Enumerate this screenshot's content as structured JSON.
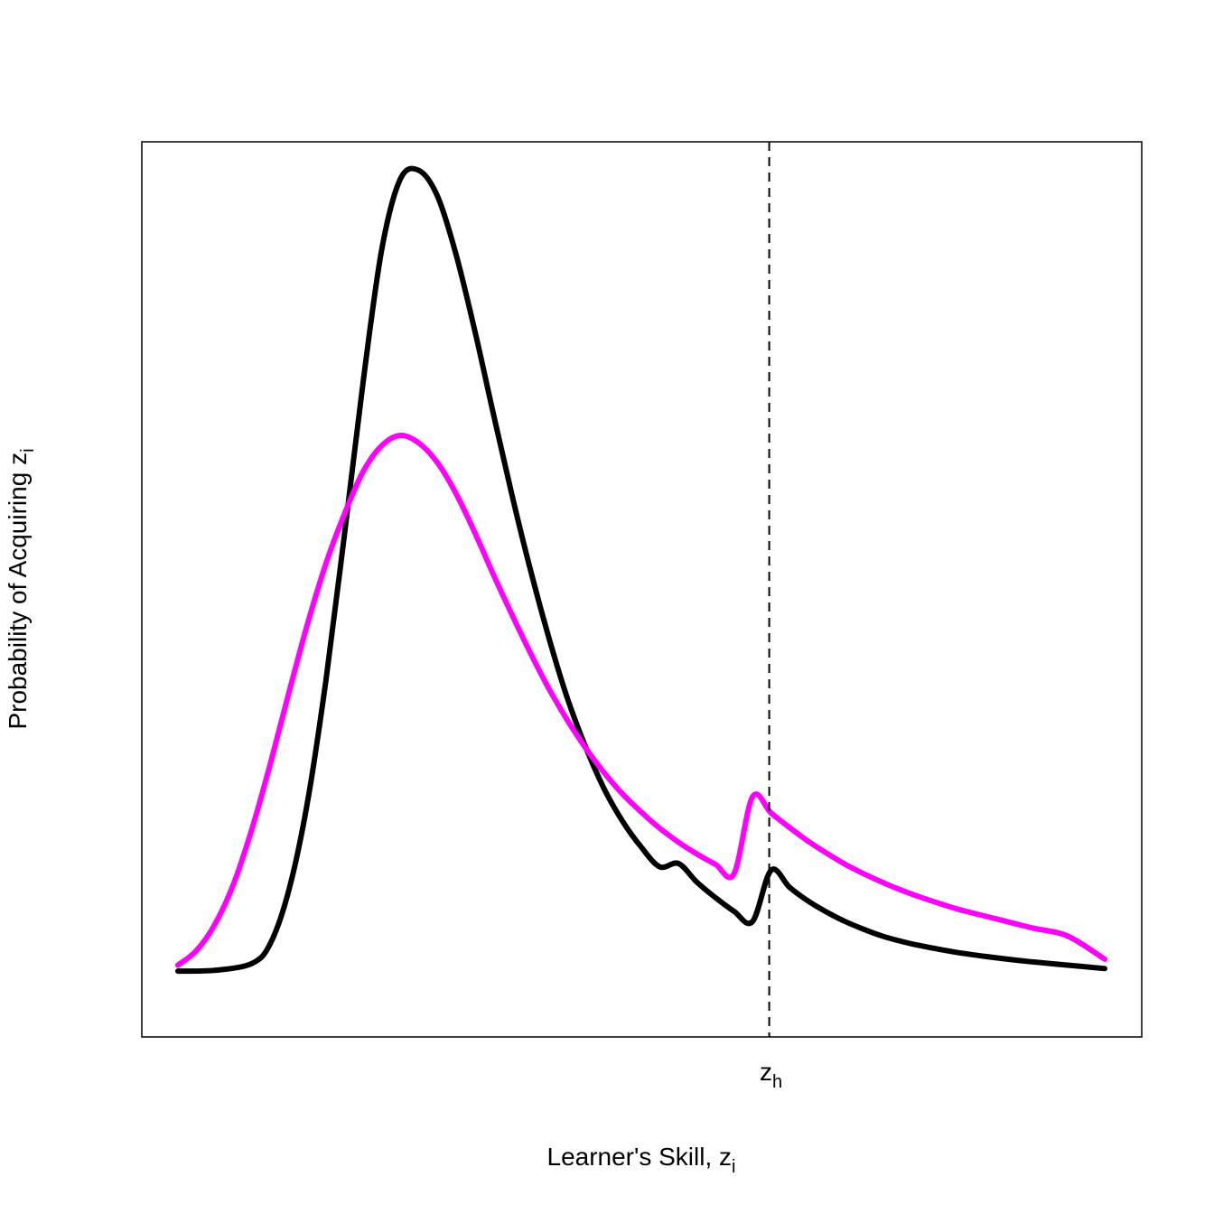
{
  "chart_data": {
    "type": "line",
    "title": "",
    "xlabel": "Learner's Skill, z",
    "xlabel_sub": "i",
    "ylabel": "Probability of Acquiring z",
    "ylabel_sub": "i",
    "xlim": [
      0,
      100
    ],
    "ylim": [
      0,
      100
    ],
    "grid": false,
    "legend": "none",
    "reference_line": {
      "x": 63.8,
      "style": "dashed",
      "label": "z",
      "label_sub": "h"
    },
    "series": [
      {
        "color": "#000000",
        "x": [
          0,
          4,
          8,
          10,
          12,
          14,
          16,
          18,
          20,
          22,
          24,
          26,
          28,
          30,
          32,
          34,
          36,
          38,
          40,
          42,
          44,
          46,
          48,
          50,
          52,
          54,
          56,
          58,
          60,
          62,
          64,
          66,
          68,
          70,
          72,
          74,
          76,
          78,
          80,
          84,
          88,
          92,
          96,
          100
        ],
        "y": [
          3.9,
          4.0,
          4.8,
          7.2,
          13.5,
          23.8,
          38.2,
          55.3,
          73.0,
          88.4,
          96.6,
          97.6,
          94.6,
          87.8,
          79.0,
          69.3,
          59.8,
          51.0,
          43.0,
          35.9,
          30.1,
          25.2,
          21.4,
          18.4,
          16.1,
          16.5,
          14.3,
          12.5,
          10.9,
          9.7,
          15.7,
          13.7,
          12.1,
          10.8,
          9.7,
          8.8,
          8.0,
          7.4,
          6.9,
          6.1,
          5.5,
          5.0,
          4.6,
          4.2
        ]
      },
      {
        "color": "#ff00ff",
        "x": [
          0,
          2,
          4,
          6,
          8,
          10,
          12,
          14,
          16,
          18,
          20,
          22,
          24,
          26,
          28,
          30,
          32,
          34,
          36,
          38,
          40,
          42,
          44,
          46,
          48,
          50,
          52,
          54,
          56,
          58,
          60,
          62,
          64,
          66,
          68,
          70,
          72,
          74,
          76,
          78,
          80,
          84,
          88,
          92,
          96,
          100
        ],
        "y": [
          4.6,
          6.3,
          9.4,
          14.1,
          20.6,
          28.3,
          36.6,
          44.6,
          51.7,
          57.5,
          62.4,
          65.4,
          66.6,
          65.7,
          63.4,
          59.8,
          55.3,
          50.4,
          45.7,
          41.2,
          37.0,
          33.3,
          30.0,
          27.1,
          24.6,
          22.5,
          20.6,
          19.0,
          17.6,
          16.4,
          15.3,
          24.3,
          22.4,
          20.7,
          19.1,
          17.7,
          16.4,
          15.3,
          14.3,
          13.4,
          12.6,
          11.2,
          10.1,
          9.0,
          8.0,
          5.3
        ]
      }
    ]
  }
}
